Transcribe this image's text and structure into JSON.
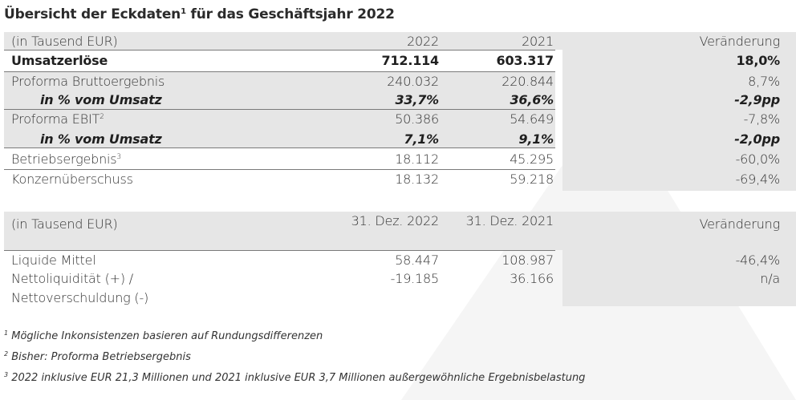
{
  "title": "Übersicht der Eckdaten",
  "title_sup": "1",
  "title_suffix": " für das Geschäftsjahr 2022",
  "table1": {
    "header": {
      "label": "(in Tausend EUR)",
      "y1": "2022",
      "y2": "2021",
      "chg": "Veränderung"
    },
    "rows": [
      {
        "label": "Umsatzerlöse",
        "y1": "712.114",
        "y2": "603.317",
        "chg": "18,0%"
      },
      {
        "label": "Proforma Bruttoergebnis",
        "y1": "240.032",
        "y2": "220.844",
        "chg": "8,7%"
      },
      {
        "label": "in % vom Umsatz",
        "y1": "33,7%",
        "y2": "36,6%",
        "chg": "-2,9pp"
      },
      {
        "label": "Proforma EBIT",
        "label_sup": "2",
        "y1": "50.386",
        "y2": "54.649",
        "chg": "-7,8%"
      },
      {
        "label": "in % vom Umsatz",
        "y1": "7,1%",
        "y2": "9,1%",
        "chg": "-2,0pp"
      },
      {
        "label": "Betriebsergebnis",
        "label_sup": "3",
        "y1": "18.112",
        "y2": "45.295",
        "chg": "-60,0%"
      },
      {
        "label": "Konzernüberschuss",
        "y1": "18.132",
        "y2": "59.218",
        "chg": "-69,4%"
      }
    ]
  },
  "table2": {
    "header": {
      "label": "(in Tausend EUR)",
      "y1": "31. Dez. 2022",
      "y2": "31. Dez. 2021",
      "chg": "Veränderung"
    },
    "rows": [
      {
        "label": "Liquide Mittel",
        "y1": "58.447",
        "y2": "108.987",
        "chg": "-46,4%"
      },
      {
        "label": "Nettoliquidität (+) /",
        "label2": "Nettoverschuldung (-)",
        "y1": "-19.185",
        "y2": "36.166",
        "chg": "n/a"
      }
    ]
  },
  "footnotes": [
    {
      "num": "1",
      "text": " Mögliche Inkonsistenzen basieren auf Rundungsdifferenzen"
    },
    {
      "num": "2",
      "text": " Bisher: Proforma Betriebsergebnis"
    },
    {
      "num": "3",
      "text": " 2022 inklusive EUR 21,3 Millionen und 2021 inklusive EUR 3,7 Millionen außergewöhnliche Ergebnisbelastung"
    }
  ],
  "colors": {
    "row_shade": "#e6e6e6",
    "rule": "#7a7a7a",
    "watermark": "#f4f4f4"
  }
}
